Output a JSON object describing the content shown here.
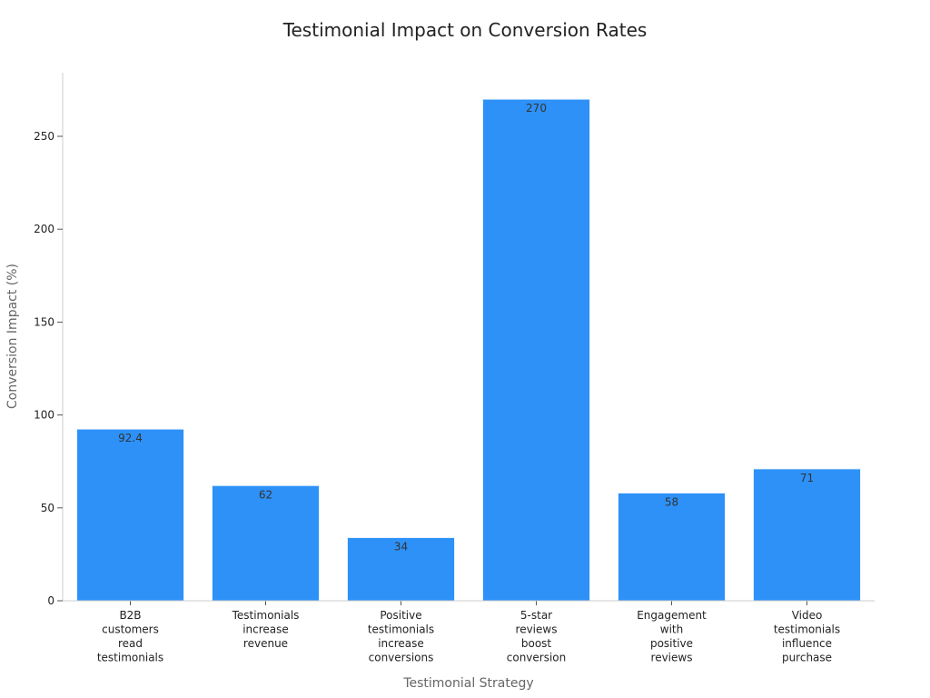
{
  "chart_data": {
    "type": "bar",
    "title": "Testimonial Impact on Conversion Rates",
    "xlabel": "Testimonial Strategy",
    "ylabel": "Conversion Impact (%)",
    "categories": [
      [
        "B2B",
        "customers",
        "read",
        "testimonials"
      ],
      [
        "Testimonials",
        "increase",
        "revenue"
      ],
      [
        "Positive",
        "testimonials",
        "increase",
        "conversions"
      ],
      [
        "5-star",
        "reviews",
        "boost",
        "conversion"
      ],
      [
        "Engagement",
        "with",
        "positive",
        "reviews"
      ],
      [
        "Video",
        "testimonials",
        "influence",
        "purchase"
      ]
    ],
    "values": [
      92.4,
      62,
      34,
      270,
      58,
      71
    ],
    "value_labels": [
      "92.4",
      "62",
      "34",
      "270",
      "58",
      "71"
    ],
    "yticks": [
      0,
      50,
      100,
      150,
      200,
      250
    ],
    "ylim": [
      0,
      280
    ],
    "grid": false,
    "bar_color": "#2d91f8",
    "bar_edge_color": "#e8f2fe"
  }
}
